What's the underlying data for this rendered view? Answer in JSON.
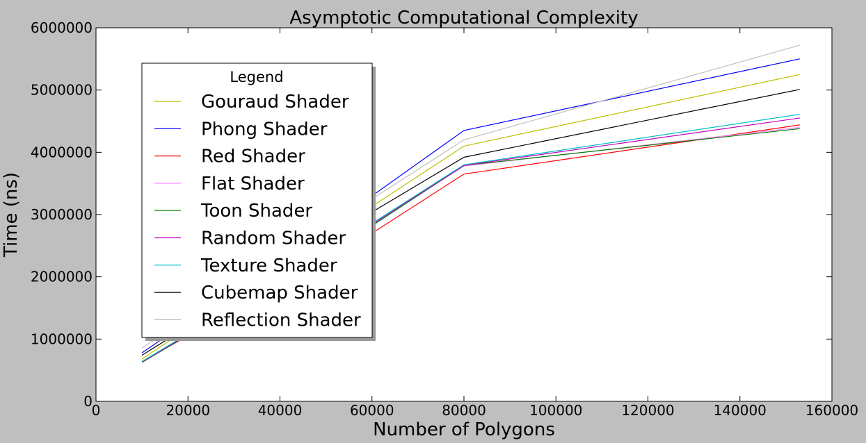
{
  "chart_data": {
    "type": "line",
    "title": "Asymptotic Computational Complexity",
    "xlabel": "Number of Polygons",
    "ylabel": "Time (ns)",
    "xlim": [
      0,
      160000
    ],
    "ylim": [
      0,
      6000000
    ],
    "xticks": [
      0,
      20000,
      40000,
      60000,
      80000,
      100000,
      120000,
      140000,
      160000
    ],
    "yticks": [
      0,
      1000000,
      2000000,
      3000000,
      4000000,
      5000000,
      6000000
    ],
    "xtick_labels": [
      "0",
      "20000",
      "40000",
      "60000",
      "80000",
      "100000",
      "120000",
      "140000",
      "160000"
    ],
    "ytick_labels": [
      "0",
      "1000000",
      "2000000",
      "3000000",
      "4000000",
      "5000000",
      "6000000"
    ],
    "grid": false,
    "legend": {
      "title": "Legend",
      "placement": "upper-left"
    },
    "x": [
      10000,
      60000,
      80000,
      153000
    ],
    "series": [
      {
        "name": "Gouraud Shader",
        "color": "#bfbf00",
        "values": [
          680000,
          3130000,
          4100000,
          5250000
        ]
      },
      {
        "name": "Phong Shader",
        "color": "#0000ff",
        "values": [
          780000,
          3300000,
          4350000,
          5500000
        ]
      },
      {
        "name": "Red Shader",
        "color": "#ff0000",
        "values": [
          640000,
          2700000,
          3650000,
          4440000
        ]
      },
      {
        "name": "Flat Shader",
        "color": "#ff80ff",
        "values": [
          630000,
          2830000,
          3780000,
          4400000
        ]
      },
      {
        "name": "Toon Shader",
        "color": "#008000",
        "values": [
          625000,
          2820000,
          3790000,
          4380000
        ]
      },
      {
        "name": "Random Shader",
        "color": "#bf00bf",
        "values": [
          630000,
          2840000,
          3790000,
          4550000
        ]
      },
      {
        "name": "Texture Shader",
        "color": "#00bfbf",
        "values": [
          640000,
          2860000,
          3800000,
          4610000
        ]
      },
      {
        "name": "Cubemap Shader",
        "color": "#000000",
        "values": [
          740000,
          3040000,
          3920000,
          5010000
        ]
      },
      {
        "name": "Reflection Shader",
        "color": "#c0c0c0",
        "values": [
          860000,
          3250000,
          4200000,
          5720000
        ]
      }
    ]
  }
}
